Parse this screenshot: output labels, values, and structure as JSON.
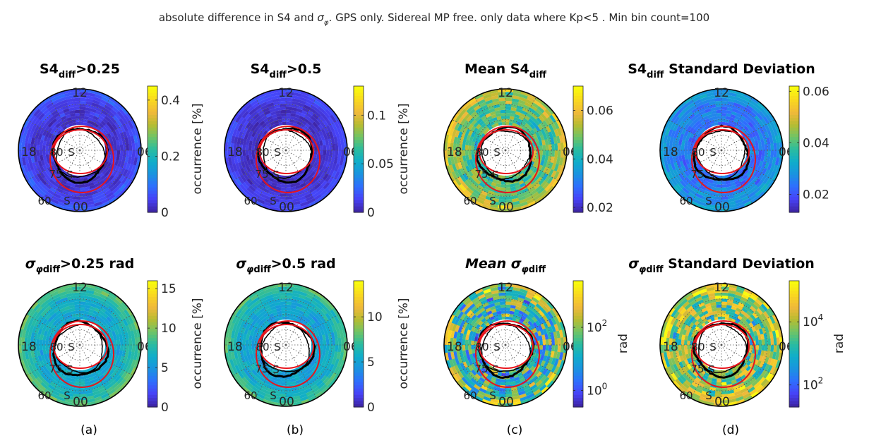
{
  "figure": {
    "title_prefix": "absolute difference in S4 and ",
    "title_symbol": "σ",
    "title_symbol_sub": "φ",
    "title_suffix": ". GPS only. Sidereal MP free. only data where Kp<5 . Min bin count=100",
    "column_labels": [
      "(a)",
      "(b)",
      "(c)",
      "(d)"
    ]
  },
  "polar_labels": {
    "mlt_top": "12",
    "mlt_left": "18",
    "mlt_right": "06",
    "mlt_bottom": "00",
    "lat_inner": "80",
    "lat_mid": "75",
    "lat_outer": "60",
    "hemisphere": "S"
  },
  "colors": {
    "parula": [
      "#3e26a8",
      "#4743f8",
      "#2e6ffd",
      "#1a93e0",
      "#0fadca",
      "#2abc9f",
      "#6fc466",
      "#b7bc32",
      "#f0b93a",
      "#f9d81f",
      "#f9fb0e"
    ],
    "oval": "#e8141c",
    "coastline": "#000000",
    "frame": "#000000"
  },
  "chart_data": [
    {
      "type": "heatmap",
      "projection": "polar",
      "title_main": "S4",
      "title_sub": "diff",
      "title_tail": ">0.25",
      "cbar_label": "occurrence [%]",
      "cbar_scale": "linear",
      "clim": [
        0,
        0.45
      ],
      "cbar_ticks": [
        {
          "v": 0,
          "t": "0"
        },
        {
          "v": 0.2,
          "t": "0.2"
        },
        {
          "v": 0.4,
          "t": "0.4"
        }
      ],
      "field": {
        "base": 0.05,
        "noise": 0.04,
        "rim": 0.1,
        "bands": 0.05
      }
    },
    {
      "type": "heatmap",
      "projection": "polar",
      "title_main": "S4",
      "title_sub": "diff",
      "title_tail": ">0.5",
      "cbar_label": "occurrence [%]",
      "cbar_scale": "linear",
      "clim": [
        0,
        0.13
      ],
      "cbar_ticks": [
        {
          "v": 0,
          "t": "0"
        },
        {
          "v": 0.05,
          "t": "0.05"
        },
        {
          "v": 0.1,
          "t": "0.1"
        }
      ],
      "field": {
        "base": 0.04,
        "noise": 0.04,
        "rim": 0.08,
        "bands": 0.04
      }
    },
    {
      "type": "heatmap",
      "projection": "polar",
      "title_main": "Mean S4",
      "title_sub": "diff",
      "title_tail": "",
      "cbar_label": "",
      "cbar_scale": "linear",
      "clim": [
        0.018,
        0.07
      ],
      "cbar_ticks": [
        {
          "v": 0.02,
          "t": "0.02"
        },
        {
          "v": 0.04,
          "t": "0.04"
        },
        {
          "v": 0.06,
          "t": "0.06"
        }
      ],
      "field": {
        "base": 0.55,
        "noise": 0.15,
        "rim": 0.2,
        "bands": 0.12
      }
    },
    {
      "type": "heatmap",
      "projection": "polar",
      "title_main": "S4",
      "title_sub": "diff",
      "title_tail": " Standard Deviation",
      "cbar_label": "",
      "cbar_scale": "linear",
      "clim": [
        0.013,
        0.062
      ],
      "cbar_ticks": [
        {
          "v": 0.02,
          "t": "0.02"
        },
        {
          "v": 0.04,
          "t": "0.04"
        },
        {
          "v": 0.06,
          "t": "0.06"
        }
      ],
      "field": {
        "base": 0.22,
        "noise": 0.08,
        "rim": 0.12,
        "bands": 0.06
      }
    },
    {
      "type": "heatmap",
      "projection": "polar",
      "title_main": "σ",
      "title_main_sub": "φ",
      "title_sub": "diff",
      "title_tail": ">0.25 rad",
      "cbar_label": "occurrence [%]",
      "cbar_scale": "linear",
      "clim": [
        0,
        16
      ],
      "cbar_ticks": [
        {
          "v": 0,
          "t": "0"
        },
        {
          "v": 5,
          "t": "5"
        },
        {
          "v": 10,
          "t": "10"
        },
        {
          "v": 15,
          "t": "15"
        }
      ],
      "field": {
        "base": 0.38,
        "noise": 0.06,
        "rim": 0.2,
        "bands": 0.05
      }
    },
    {
      "type": "heatmap",
      "projection": "polar",
      "title_main": "σ",
      "title_main_sub": "φ",
      "title_sub": "diff",
      "title_tail": ">0.5 rad",
      "cbar_label": "occurrence [%]",
      "cbar_scale": "linear",
      "clim": [
        0,
        14
      ],
      "cbar_ticks": [
        {
          "v": 0,
          "t": "0"
        },
        {
          "v": 5,
          "t": "5"
        },
        {
          "v": 10,
          "t": "10"
        }
      ],
      "field": {
        "base": 0.36,
        "noise": 0.06,
        "rim": 0.2,
        "bands": 0.05
      }
    },
    {
      "type": "heatmap",
      "projection": "polar",
      "title_main": "Mean σ",
      "title_main_sub": "φ",
      "title_sub": "diff",
      "title_tail": "",
      "cbar_label": "rad",
      "cbar_scale": "log",
      "clim": [
        0.3,
        3000
      ],
      "cbar_ticks": [
        {
          "v": 1,
          "t": "10",
          "sup": "0"
        },
        {
          "v": 100,
          "t": "10",
          "sup": "2"
        }
      ],
      "field": {
        "base": 0.45,
        "noise": 0.3,
        "rim": 0.2,
        "bands": 0.2
      }
    },
    {
      "type": "heatmap",
      "projection": "polar",
      "title_main": "σ",
      "title_main_sub": "φ",
      "title_sub": "diff",
      "title_tail": " Standard Deviation",
      "cbar_label": "rad",
      "cbar_scale": "log",
      "clim": [
        20,
        200000
      ],
      "cbar_ticks": [
        {
          "v": 100,
          "t": "10",
          "sup": "2"
        },
        {
          "v": 10000,
          "t": "10",
          "sup": "4"
        }
      ],
      "field": {
        "base": 0.62,
        "noise": 0.25,
        "rim": 0.15,
        "bands": 0.18
      }
    }
  ]
}
